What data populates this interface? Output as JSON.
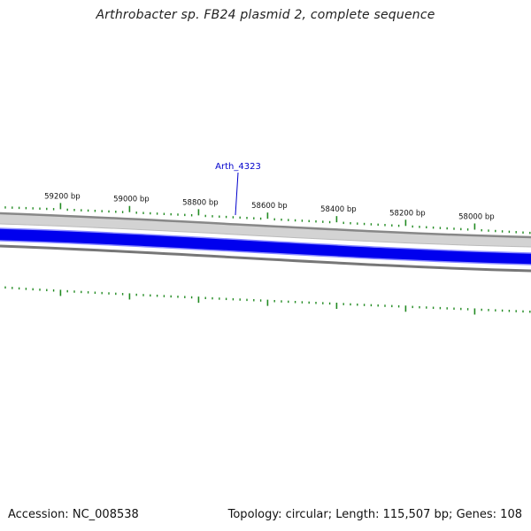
{
  "header": {
    "title": "Arthrobacter sp. FB24 plasmid 2, complete sequence"
  },
  "footer": {
    "accession_label": "Accession:",
    "accession_value": "NC_008538",
    "topology_label": "Topology:",
    "topology_value": "circular",
    "length_label": "Length:",
    "length_value": "115,507 bp",
    "genes_label": "Genes:",
    "genes_value": "108"
  },
  "colors": {
    "outer_ring": "#d3d3d3",
    "outer_ring_edge": "#888888",
    "forward_genes": "#0000ee",
    "forward_genes_edge": "#8a8aff",
    "inner_ring_edge": "#777777",
    "ticks": "#228b22",
    "label_text": "#111111",
    "feature_label": "#0000cc"
  },
  "scale": {
    "labels": [
      {
        "text": "59200 bp"
      },
      {
        "text": "59000 bp"
      },
      {
        "text": "58800 bp"
      },
      {
        "text": "58600 bp"
      },
      {
        "text": "58400 bp"
      },
      {
        "text": "58200 bp"
      },
      {
        "text": "58000 bp"
      }
    ]
  },
  "features": [
    {
      "label": "Arth_4323"
    }
  ]
}
